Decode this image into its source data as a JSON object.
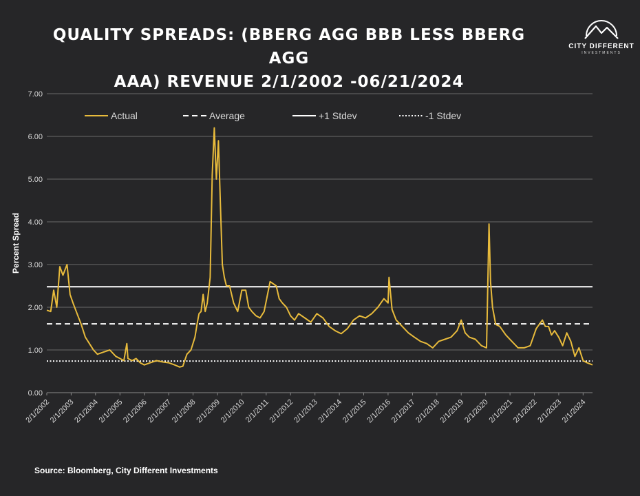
{
  "title_line1": "QUALITY SPREADS: (BBERG AGG BBB LESS BBERG AGG",
  "title_line2": "AAA) REVENUE 2/1/2002 -06/21/2024",
  "logo": {
    "name": "CITY DIFFERENT",
    "sub": "INVESTMENTS",
    "icon": "mountain-circle-logo"
  },
  "source": "Source: Bloomberg, City Different Investments",
  "colors": {
    "background": "#262628",
    "actual": "#e8bb3c",
    "reference": "#ffffff",
    "grid": "#6a6a6a",
    "text": "#d9d9d9"
  },
  "chart_data": {
    "type": "line",
    "title": "QUALITY SPREADS: (BBERG AGG BBB LESS BBERG AGG AAA) REVENUE 2/1/2002 -06/21/2024",
    "xlabel": "",
    "ylabel": "Percent Spread",
    "ylim": [
      0,
      7
    ],
    "yticks": [
      "0.00",
      "1.00",
      "2.00",
      "3.00",
      "4.00",
      "5.00",
      "6.00",
      "7.00"
    ],
    "xlim": [
      "2002-02-01",
      "2024-06-21"
    ],
    "xticks": [
      "2/1/2002",
      "2/1/2003",
      "2/1/2004",
      "2/1/2005",
      "2/1/2006",
      "2/1/2007",
      "2/1/2008",
      "2/1/2009",
      "2/1/2010",
      "2/1/2011",
      "2/1/2012",
      "2/1/2013",
      "2/1/2014",
      "2/1/2015",
      "2/1/2016",
      "2/1/2017",
      "2/1/2018",
      "2/1/2019",
      "2/1/2020",
      "2/1/2021",
      "2/1/2022",
      "2/1/2023",
      "2/1/2024"
    ],
    "grid": "horizontal",
    "legend_position": "top",
    "series": [
      {
        "name": "Actual",
        "style": "solid",
        "color": "#e8bb3c",
        "x": [
          "2002-02-01",
          "2002-04-01",
          "2002-05-15",
          "2002-07-01",
          "2002-08-15",
          "2002-10-01",
          "2002-12-01",
          "2003-01-15",
          "2003-03-01",
          "2003-05-01",
          "2003-07-01",
          "2003-09-01",
          "2003-11-01",
          "2004-01-01",
          "2004-03-01",
          "2004-06-01",
          "2004-09-01",
          "2004-12-01",
          "2005-02-01",
          "2005-04-01",
          "2005-05-15",
          "2005-06-01",
          "2005-08-01",
          "2005-10-01",
          "2005-12-01",
          "2006-02-01",
          "2006-05-01",
          "2006-08-01",
          "2006-11-01",
          "2007-02-01",
          "2007-05-01",
          "2007-07-15",
          "2007-09-01",
          "2007-11-01",
          "2008-01-01",
          "2008-03-01",
          "2008-04-01",
          "2008-05-01",
          "2008-06-01",
          "2008-07-01",
          "2008-08-01",
          "2008-09-01",
          "2008-10-15",
          "2008-11-15",
          "2008-12-15",
          "2009-01-15",
          "2009-02-15",
          "2009-03-15",
          "2009-04-15",
          "2009-05-15",
          "2009-06-15",
          "2009-08-01",
          "2009-10-01",
          "2009-12-01",
          "2010-02-01",
          "2010-04-01",
          "2010-05-15",
          "2010-07-01",
          "2010-09-01",
          "2010-11-01",
          "2011-01-01",
          "2011-04-01",
          "2011-07-01",
          "2011-08-15",
          "2011-10-01",
          "2011-12-01",
          "2012-02-01",
          "2012-04-01",
          "2012-06-01",
          "2012-09-01",
          "2012-12-01",
          "2013-03-01",
          "2013-06-01",
          "2013-09-01",
          "2013-12-01",
          "2014-03-01",
          "2014-06-01",
          "2014-09-01",
          "2014-12-01",
          "2015-03-01",
          "2015-06-01",
          "2015-09-01",
          "2015-12-01",
          "2016-02-01",
          "2016-02-15",
          "2016-04-01",
          "2016-06-01",
          "2016-09-01",
          "2016-12-01",
          "2017-03-01",
          "2017-06-01",
          "2017-09-01",
          "2017-12-01",
          "2018-03-01",
          "2018-06-01",
          "2018-09-01",
          "2018-12-01",
          "2019-02-01",
          "2019-04-01",
          "2019-06-01",
          "2019-09-01",
          "2019-12-01",
          "2020-02-15",
          "2020-03-23",
          "2020-04-15",
          "2020-05-15",
          "2020-07-01",
          "2020-09-01",
          "2020-12-01",
          "2021-03-01",
          "2021-06-01",
          "2021-09-01",
          "2021-12-01",
          "2022-03-01",
          "2022-06-01",
          "2022-07-15",
          "2022-09-01",
          "2022-10-15",
          "2022-12-01",
          "2023-02-01",
          "2023-04-01",
          "2023-06-01",
          "2023-08-01",
          "2023-10-01",
          "2023-12-01",
          "2024-02-01",
          "2024-04-01",
          "2024-06-21"
        ],
        "y": [
          1.93,
          1.9,
          2.4,
          2.0,
          2.95,
          2.75,
          3.0,
          2.3,
          2.1,
          1.85,
          1.6,
          1.3,
          1.15,
          1.0,
          0.9,
          0.95,
          1.0,
          0.85,
          0.8,
          0.75,
          1.15,
          0.8,
          0.75,
          0.8,
          0.7,
          0.65,
          0.7,
          0.75,
          0.72,
          0.7,
          0.65,
          0.6,
          0.62,
          0.9,
          1.0,
          1.3,
          1.6,
          1.85,
          1.9,
          2.3,
          1.9,
          2.1,
          2.7,
          5.1,
          6.2,
          5.0,
          5.9,
          4.5,
          3.0,
          2.7,
          2.5,
          2.5,
          2.1,
          1.9,
          2.4,
          2.4,
          2.0,
          1.9,
          1.8,
          1.75,
          1.9,
          2.6,
          2.5,
          2.2,
          2.1,
          2.0,
          1.8,
          1.7,
          1.85,
          1.75,
          1.65,
          1.85,
          1.75,
          1.55,
          1.45,
          1.38,
          1.5,
          1.7,
          1.8,
          1.75,
          1.85,
          2.0,
          2.2,
          2.1,
          2.7,
          1.95,
          1.7,
          1.55,
          1.4,
          1.3,
          1.2,
          1.15,
          1.05,
          1.2,
          1.25,
          1.3,
          1.45,
          1.7,
          1.4,
          1.3,
          1.25,
          1.1,
          1.05,
          3.95,
          2.6,
          2.0,
          1.6,
          1.55,
          1.35,
          1.2,
          1.05,
          1.05,
          1.1,
          1.5,
          1.7,
          1.55,
          1.55,
          1.35,
          1.45,
          1.3,
          1.1,
          1.4,
          1.2,
          0.85,
          1.05,
          0.75,
          0.7,
          0.65
        ]
      },
      {
        "name": "Average",
        "style": "dashed",
        "color": "#ffffff",
        "value": 1.61
      },
      {
        "name": "+1 Stdev",
        "style": "solid",
        "color": "#ffffff",
        "value": 2.48
      },
      {
        "name": "-1 Stdev",
        "style": "dotted",
        "color": "#ffffff",
        "value": 0.74
      }
    ]
  }
}
